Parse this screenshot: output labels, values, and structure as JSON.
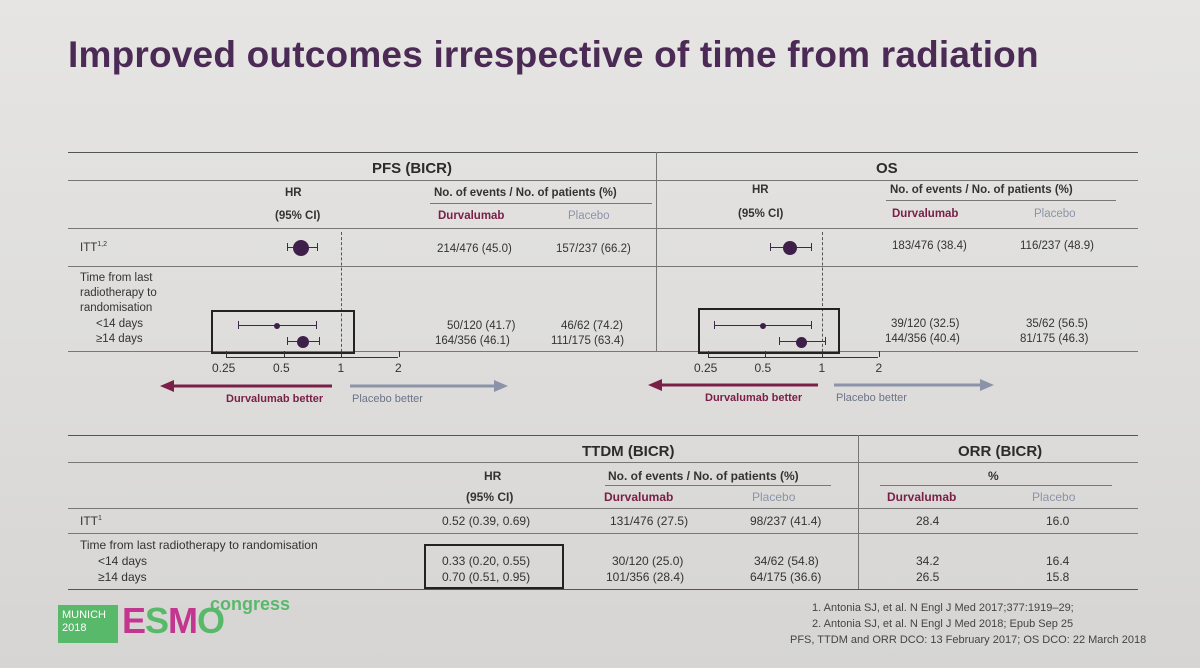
{
  "title": "Improved outcomes irrespective of time from radiation",
  "pfs": {
    "header": "PFS (BICR)",
    "hr_label": "HR",
    "ci_label": "(95% CI)",
    "events_label": "No. of events / No. of patients (%)",
    "durv_label": "Durvalumab",
    "plac_label": "Placebo",
    "itt_label": "ITT",
    "itt_sup": "1,2",
    "itt_durv": "214/476 (45.0)",
    "itt_plac": "157/237 (66.2)",
    "time_label_1": "Time from last",
    "time_label_2": "radiotherapy to",
    "time_label_3": "randomisation",
    "lt14_label": "<14 days",
    "ge14_label": "≥14 days",
    "lt14_durv": "50/120 (41.7)",
    "lt14_plac": "46/62 (74.2)",
    "ge14_durv": "164/356 (46.1)",
    "ge14_plac": "111/175 (63.4)",
    "ticks": [
      "0.25",
      "0.5",
      "1",
      "2"
    ],
    "durv_better": "Durvalumab better",
    "plac_better": "Placebo better"
  },
  "os": {
    "header": "OS",
    "hr_label": "HR",
    "ci_label": "(95% CI)",
    "events_label": "No. of events / No. of patients (%)",
    "durv_label": "Durvalumab",
    "plac_label": "Placebo",
    "itt_durv": "183/476 (38.4)",
    "itt_plac": "116/237 (48.9)",
    "lt14_durv": "39/120 (32.5)",
    "lt14_plac": "35/62 (56.5)",
    "ge14_durv": "144/356 (40.4)",
    "ge14_plac": "81/175 (46.3)",
    "ticks": [
      "0.25",
      "0.5",
      "1",
      "2"
    ],
    "durv_better": "Durvalumab better",
    "plac_better": "Placebo better"
  },
  "ttdm": {
    "header": "TTDM (BICR)",
    "hr_label": "HR",
    "ci_label": "(95% CI)",
    "events_label": "No. of events / No. of patients (%)",
    "durv_label": "Durvalumab",
    "plac_label": "Placebo",
    "itt_label": "ITT",
    "itt_sup": "1",
    "itt_hr": "0.52 (0.39, 0.69)",
    "itt_durv": "131/476 (27.5)",
    "itt_plac": "98/237 (41.4)",
    "time_label": "Time from last radiotherapy to randomisation",
    "lt14_label": "<14 days",
    "ge14_label": "≥14 days",
    "lt14_hr": "0.33 (0.20, 0.55)",
    "ge14_hr": "0.70 (0.51, 0.95)",
    "lt14_durv": "30/120 (25.0)",
    "lt14_plac": "34/62 (54.8)",
    "ge14_durv": "101/356 (28.4)",
    "ge14_plac": "64/175 (36.6)"
  },
  "orr": {
    "header": "ORR (BICR)",
    "pct_label": "%",
    "durv_label": "Durvalumab",
    "plac_label": "Placebo",
    "itt_durv": "28.4",
    "itt_plac": "16.0",
    "lt14_durv": "34.2",
    "lt14_plac": "16.4",
    "ge14_durv": "26.5",
    "ge14_plac": "15.8"
  },
  "logo": {
    "city": "MUNICH",
    "year": "2018",
    "brand": "ESMO",
    "congress": "congress"
  },
  "footnotes": [
    "1. Antonia SJ, et al. N Engl J Med 2017;377:1919–29;",
    "2. Antonia SJ, et al. N Engl J Med 2018; Epub Sep 25",
    "PFS, TTDM and ORR DCO: 13 February 2017; OS DCO: 22 March 2018"
  ],
  "forest": {
    "pfs": [
      {
        "row": "itt",
        "hr": 0.62,
        "lo": 0.52,
        "hi": 0.75,
        "size": 16
      },
      {
        "row": "lt14",
        "hr": 0.46,
        "lo": 0.29,
        "hi": 0.74,
        "size": 6
      },
      {
        "row": "ge14",
        "hr": 0.63,
        "lo": 0.52,
        "hi": 0.77,
        "size": 12
      }
    ],
    "os": [
      {
        "row": "itt",
        "hr": 0.68,
        "lo": 0.53,
        "hi": 0.87,
        "size": 14
      },
      {
        "row": "lt14",
        "hr": 0.49,
        "lo": 0.27,
        "hi": 0.88,
        "size": 6
      },
      {
        "row": "ge14",
        "hr": 0.78,
        "lo": 0.59,
        "hi": 1.04,
        "size": 11
      }
    ]
  },
  "colors": {
    "title": "#4b2a55",
    "durvalumab": "#7a2048",
    "placebo": "#8a93a8",
    "esmo_green": "#59b96a",
    "esmo_magenta": "#c2368f"
  }
}
